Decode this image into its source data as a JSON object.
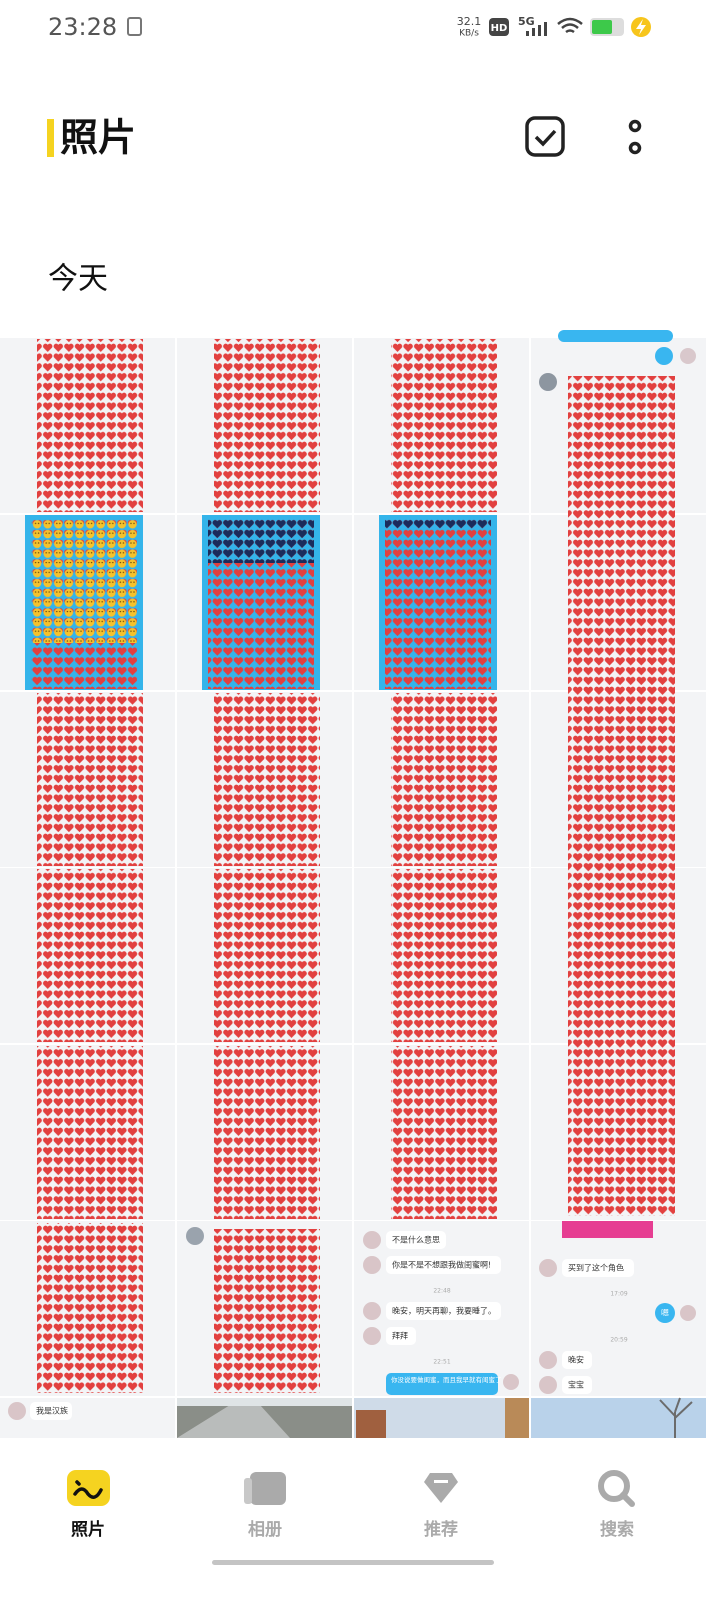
{
  "status_bar": {
    "time": "23:28",
    "speed": "32.1",
    "speed_unit": "KB/s",
    "hd": "HD",
    "network": "5G"
  },
  "header": {
    "title": "照片"
  },
  "section": {
    "title": "今天"
  },
  "thumbnails": {
    "chat_a": {
      "lines": [
        "不是什么意思",
        "你是不是不想跟我做闺蜜啊!",
        "22:48",
        "晚安，明天再聊，我要睡了。",
        "拜拜",
        "22:51",
        "你没说要做闺蜜，而且我早就有闺蜜了"
      ]
    },
    "chat_b": {
      "lines": [
        "买到了这个角色",
        "17:09",
        "嗯",
        "20:59",
        "晚安",
        "宝宝"
      ]
    },
    "chat_c": {
      "lines": [
        "我是汉族"
      ]
    }
  },
  "tabs": [
    "照片",
    "相册",
    "推荐",
    "搜索"
  ]
}
